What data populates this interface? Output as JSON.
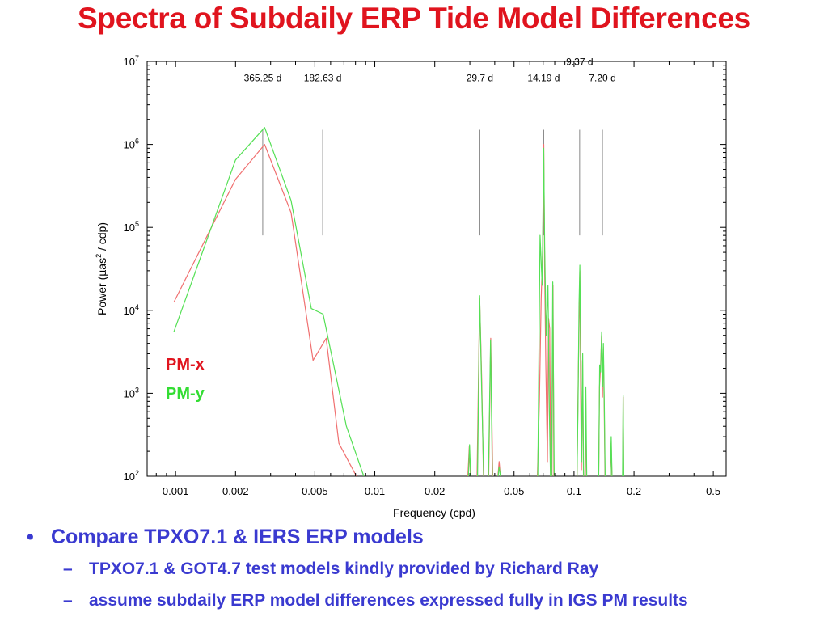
{
  "title": "Spectra of Subdaily ERP Tide Model Differences",
  "colors": {
    "title": "#e0141e",
    "bullets": "#3a3ad0",
    "pm_x": "#f07070",
    "pm_y": "#55e055"
  },
  "chart_data": {
    "type": "line",
    "xlabel": "Frequency (cpd)",
    "ylabel_prefix": "Power (µas",
    "ylabel_sup": "2",
    "ylabel_suffix": " / cdp)",
    "x_scale": "log",
    "y_scale": "log",
    "xlim": [
      0.00072,
      0.58
    ],
    "ylim": [
      100,
      10000000
    ],
    "x_ticks": [
      {
        "value": 0.001,
        "label": "0.001"
      },
      {
        "value": 0.002,
        "label": "0.002"
      },
      {
        "value": 0.005,
        "label": "0.005"
      },
      {
        "value": 0.01,
        "label": "0.01"
      },
      {
        "value": 0.02,
        "label": "0.02"
      },
      {
        "value": 0.05,
        "label": "0.05"
      },
      {
        "value": 0.1,
        "label": "0.1"
      },
      {
        "value": 0.2,
        "label": "0.2"
      },
      {
        "value": 0.5,
        "label": "0.5"
      }
    ],
    "y_ticks": [
      {
        "value": 100,
        "base": "10",
        "exp": "2"
      },
      {
        "value": 1000,
        "base": "10",
        "exp": "3"
      },
      {
        "value": 10000,
        "base": "10",
        "exp": "4"
      },
      {
        "value": 100000,
        "base": "10",
        "exp": "5"
      },
      {
        "value": 1000000,
        "base": "10",
        "exp": "6"
      },
      {
        "value": 10000000,
        "base": "10",
        "exp": "7"
      }
    ],
    "reference_periods": [
      {
        "label": "365.25 d",
        "frequency": 0.002738,
        "y_top": 1500000,
        "y_bottom": 80000,
        "label_y": 5800000
      },
      {
        "label": "182.63 d",
        "frequency": 0.005476,
        "y_top": 1500000,
        "y_bottom": 80000,
        "label_y": 5800000
      },
      {
        "label": "29.7 d",
        "frequency": 0.03367,
        "y_top": 1500000,
        "y_bottom": 80000,
        "label_y": 5800000
      },
      {
        "label": "14.19 d",
        "frequency": 0.07047,
        "y_top": 1500000,
        "y_bottom": 80000,
        "label_y": 5800000
      },
      {
        "label": "9.37 d",
        "frequency": 0.1067,
        "y_top": 1500000,
        "y_bottom": 80000,
        "label_y": 9000000
      },
      {
        "label": "7.20 d",
        "frequency": 0.1389,
        "y_top": 1500000,
        "y_bottom": 80000,
        "label_y": 5800000
      }
    ],
    "series": [
      {
        "name": "PM-x",
        "color": "#f07070",
        "segments": [
          [
            [
              0.00098,
              12500
            ],
            [
              0.002,
              380000
            ],
            [
              0.0028,
              1000000
            ],
            [
              0.0038,
              150000
            ],
            [
              0.0049,
              2500
            ],
            [
              0.0057,
              4600
            ],
            [
              0.0066,
              250
            ],
            [
              0.0085,
              80
            ]
          ],
          [
            [
              0.0293,
              100
            ],
            [
              0.0298,
              230
            ],
            [
              0.0302,
              100
            ]
          ],
          [
            [
              0.0326,
              100
            ],
            [
              0.0336,
              14000
            ],
            [
              0.0344,
              1500
            ],
            [
              0.0351,
              100
            ]
          ],
          [
            [
              0.0373,
              100
            ],
            [
              0.0382,
              4600
            ],
            [
              0.0391,
              100
            ]
          ],
          [
            [
              0.0415,
              100
            ],
            [
              0.0421,
              150
            ],
            [
              0.0427,
              100
            ]
          ],
          [
            [
              0.0655,
              100
            ],
            [
              0.067,
              800
            ],
            [
              0.0684,
              14000
            ],
            [
              0.0697,
              60000
            ],
            [
              0.0705,
              1000000
            ],
            [
              0.0712,
              30000
            ],
            [
              0.0722,
              2000
            ],
            [
              0.0735,
              150
            ],
            [
              0.0745,
              8000
            ],
            [
              0.0755,
              6000
            ],
            [
              0.0765,
              100
            ]
          ],
          [
            [
              0.0775,
              100
            ],
            [
              0.0784,
              20000
            ],
            [
              0.0792,
              100
            ]
          ],
          [
            [
              0.1035,
              100
            ],
            [
              0.105,
              1500
            ],
            [
              0.1062,
              9000
            ],
            [
              0.107,
              30000
            ],
            [
              0.108,
              1000
            ],
            [
              0.109,
              120
            ],
            [
              0.1103,
              2500
            ],
            [
              0.1115,
              100
            ]
          ],
          [
            [
              0.1135,
              100
            ],
            [
              0.1145,
              900
            ],
            [
              0.1155,
              100
            ]
          ],
          [
            [
              0.133,
              100
            ],
            [
              0.1342,
              1200
            ],
            [
              0.1358,
              2000
            ],
            [
              0.1375,
              5000
            ],
            [
              0.139,
              900
            ],
            [
              0.1402,
              3600
            ],
            [
              0.1418,
              600
            ],
            [
              0.143,
              100
            ]
          ],
          [
            [
              0.152,
              100
            ],
            [
              0.1535,
              250
            ],
            [
              0.155,
              100
            ]
          ],
          [
            [
              0.1755,
              100
            ],
            [
              0.1765,
              900
            ],
            [
              0.1775,
              100
            ]
          ]
        ]
      },
      {
        "name": "PM-y",
        "color": "#55e055",
        "segments": [
          [
            [
              0.00098,
              5500
            ],
            [
              0.002,
              650000
            ],
            [
              0.0028,
              1600000
            ],
            [
              0.0038,
              210000
            ],
            [
              0.0048,
              10500
            ],
            [
              0.0055,
              9000
            ],
            [
              0.0072,
              400
            ],
            [
              0.0088,
              100
            ]
          ],
          [
            [
              0.0295,
              100
            ],
            [
              0.0299,
              240
            ],
            [
              0.0303,
              100
            ]
          ],
          [
            [
              0.0328,
              100
            ],
            [
              0.0336,
              15000
            ],
            [
              0.0345,
              800
            ],
            [
              0.0352,
              100
            ]
          ],
          [
            [
              0.0372,
              100
            ],
            [
              0.0381,
              4400
            ],
            [
              0.0389,
              100
            ]
          ],
          [
            [
              0.0416,
              100
            ],
            [
              0.0421,
              130
            ],
            [
              0.0427,
              100
            ]
          ],
          [
            [
              0.0658,
              100
            ],
            [
              0.0675,
              80000
            ],
            [
              0.0692,
              20000
            ],
            [
              0.0704,
              900000
            ],
            [
              0.0712,
              60000
            ],
            [
              0.0724,
              5000
            ],
            [
              0.074,
              20000
            ],
            [
              0.0752,
              600
            ],
            [
              0.0762,
              100
            ]
          ],
          [
            [
              0.0772,
              100
            ],
            [
              0.0782,
              22000
            ],
            [
              0.0795,
              100
            ]
          ],
          [
            [
              0.1035,
              100
            ],
            [
              0.1048,
              800
            ],
            [
              0.106,
              12000
            ],
            [
              0.107,
              35000
            ],
            [
              0.1082,
              2000
            ],
            [
              0.1092,
              150
            ],
            [
              0.1105,
              3000
            ],
            [
              0.1117,
              100
            ]
          ],
          [
            [
              0.1135,
              100
            ],
            [
              0.1146,
              1200
            ],
            [
              0.1158,
              100
            ]
          ],
          [
            [
              0.133,
              100
            ],
            [
              0.1345,
              2200
            ],
            [
              0.136,
              1800
            ],
            [
              0.1376,
              5500
            ],
            [
              0.1392,
              1200
            ],
            [
              0.1404,
              4000
            ],
            [
              0.142,
              700
            ],
            [
              0.1433,
              100
            ]
          ],
          [
            [
              0.152,
              100
            ],
            [
              0.1537,
              300
            ],
            [
              0.1552,
              100
            ]
          ],
          [
            [
              0.1752,
              100
            ],
            [
              0.1764,
              950
            ],
            [
              0.1776,
              100
            ]
          ]
        ]
      }
    ]
  },
  "bullets": [
    {
      "marker": "•",
      "text": "Compare TPXO7.1 & IERS ERP models",
      "sub": [
        {
          "marker": "–",
          "text": "TPXO7.1 & GOT4.7 test models kindly provided by Richard Ray"
        },
        {
          "marker": "–",
          "text": "assume subdaily ERP model differences expressed fully in IGS PM results"
        }
      ]
    }
  ]
}
